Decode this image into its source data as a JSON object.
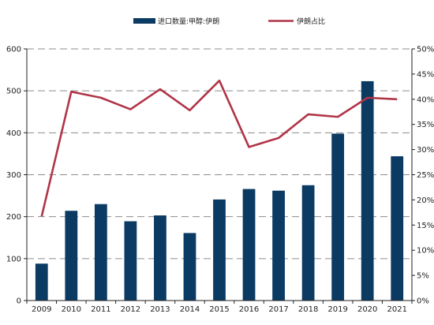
{
  "chart_data": {
    "type": "bar",
    "categories": [
      "2009",
      "2010",
      "2011",
      "2012",
      "2013",
      "2014",
      "2015",
      "2016",
      "2017",
      "2018",
      "2019",
      "2020",
      "2021"
    ],
    "series": [
      {
        "name": "进口数量:甲醇:伊朗",
        "type": "bar",
        "axis": "left",
        "color": "#0b3a63",
        "values": [
          88,
          214,
          230,
          189,
          203,
          161,
          241,
          266,
          262,
          275,
          398,
          523,
          344
        ]
      },
      {
        "name": "伊朗占比",
        "type": "line",
        "axis": "right",
        "color": "#b03548",
        "values": [
          16.7,
          41.5,
          40.3,
          38.0,
          42.0,
          37.8,
          43.7,
          30.5,
          32.3,
          37.0,
          36.5,
          40.3,
          40.0
        ]
      }
    ],
    "y_left": {
      "ylim": [
        0,
        600
      ],
      "ticks": [
        "0",
        "100",
        "200",
        "300",
        "400",
        "500",
        "600"
      ]
    },
    "y_right": {
      "ylim": [
        0,
        50
      ],
      "ticks": [
        "0%",
        "5%",
        "10%",
        "15%",
        "20%",
        "25%",
        "30%",
        "35%",
        "40%",
        "45%",
        "50%"
      ]
    },
    "grid": "dashed-horizontal",
    "legend": "top-center"
  }
}
